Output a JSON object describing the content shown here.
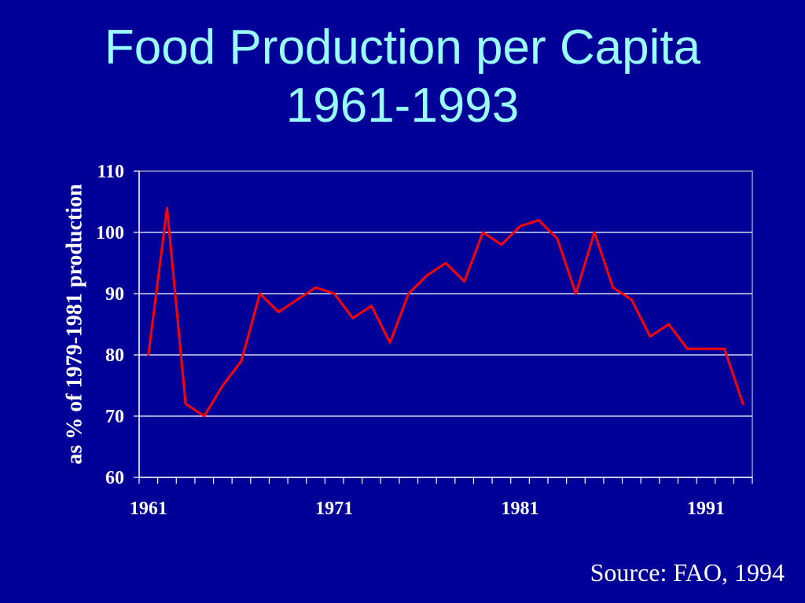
{
  "slide": {
    "source": "Source: FAO, 1994"
  },
  "colors": {
    "background": "#000099",
    "title": "#99ffff",
    "text": "#ffffff",
    "gridline": "#ffffff",
    "plot_border": "#c0c0c0",
    "series": "#ff0000"
  },
  "chart_data": {
    "type": "line",
    "title": [
      "Food Production per Capita",
      "1961-1993"
    ],
    "ylabel": "as % of 1979-1981 production",
    "x": [
      1961,
      1962,
      1963,
      1964,
      1965,
      1966,
      1967,
      1968,
      1969,
      1970,
      1971,
      1972,
      1973,
      1974,
      1975,
      1976,
      1977,
      1978,
      1979,
      1980,
      1981,
      1982,
      1983,
      1984,
      1985,
      1986,
      1987,
      1988,
      1989,
      1990,
      1991,
      1992,
      1993
    ],
    "x_tick_labels": [
      "1961",
      "1971",
      "1981",
      "1991"
    ],
    "y_ticks": [
      60,
      70,
      80,
      90,
      100,
      110
    ],
    "ylim": [
      60,
      110
    ],
    "grid": true,
    "legend": "none",
    "series": [
      {
        "color": "#ff0000",
        "values": [
          80,
          104,
          72,
          70,
          75,
          79,
          90,
          87,
          89,
          91,
          90,
          86,
          88,
          82,
          90,
          93,
          95,
          92,
          100,
          98,
          101,
          102,
          99,
          90,
          100,
          91,
          89,
          83,
          85,
          81,
          81,
          81,
          72
        ]
      }
    ]
  }
}
